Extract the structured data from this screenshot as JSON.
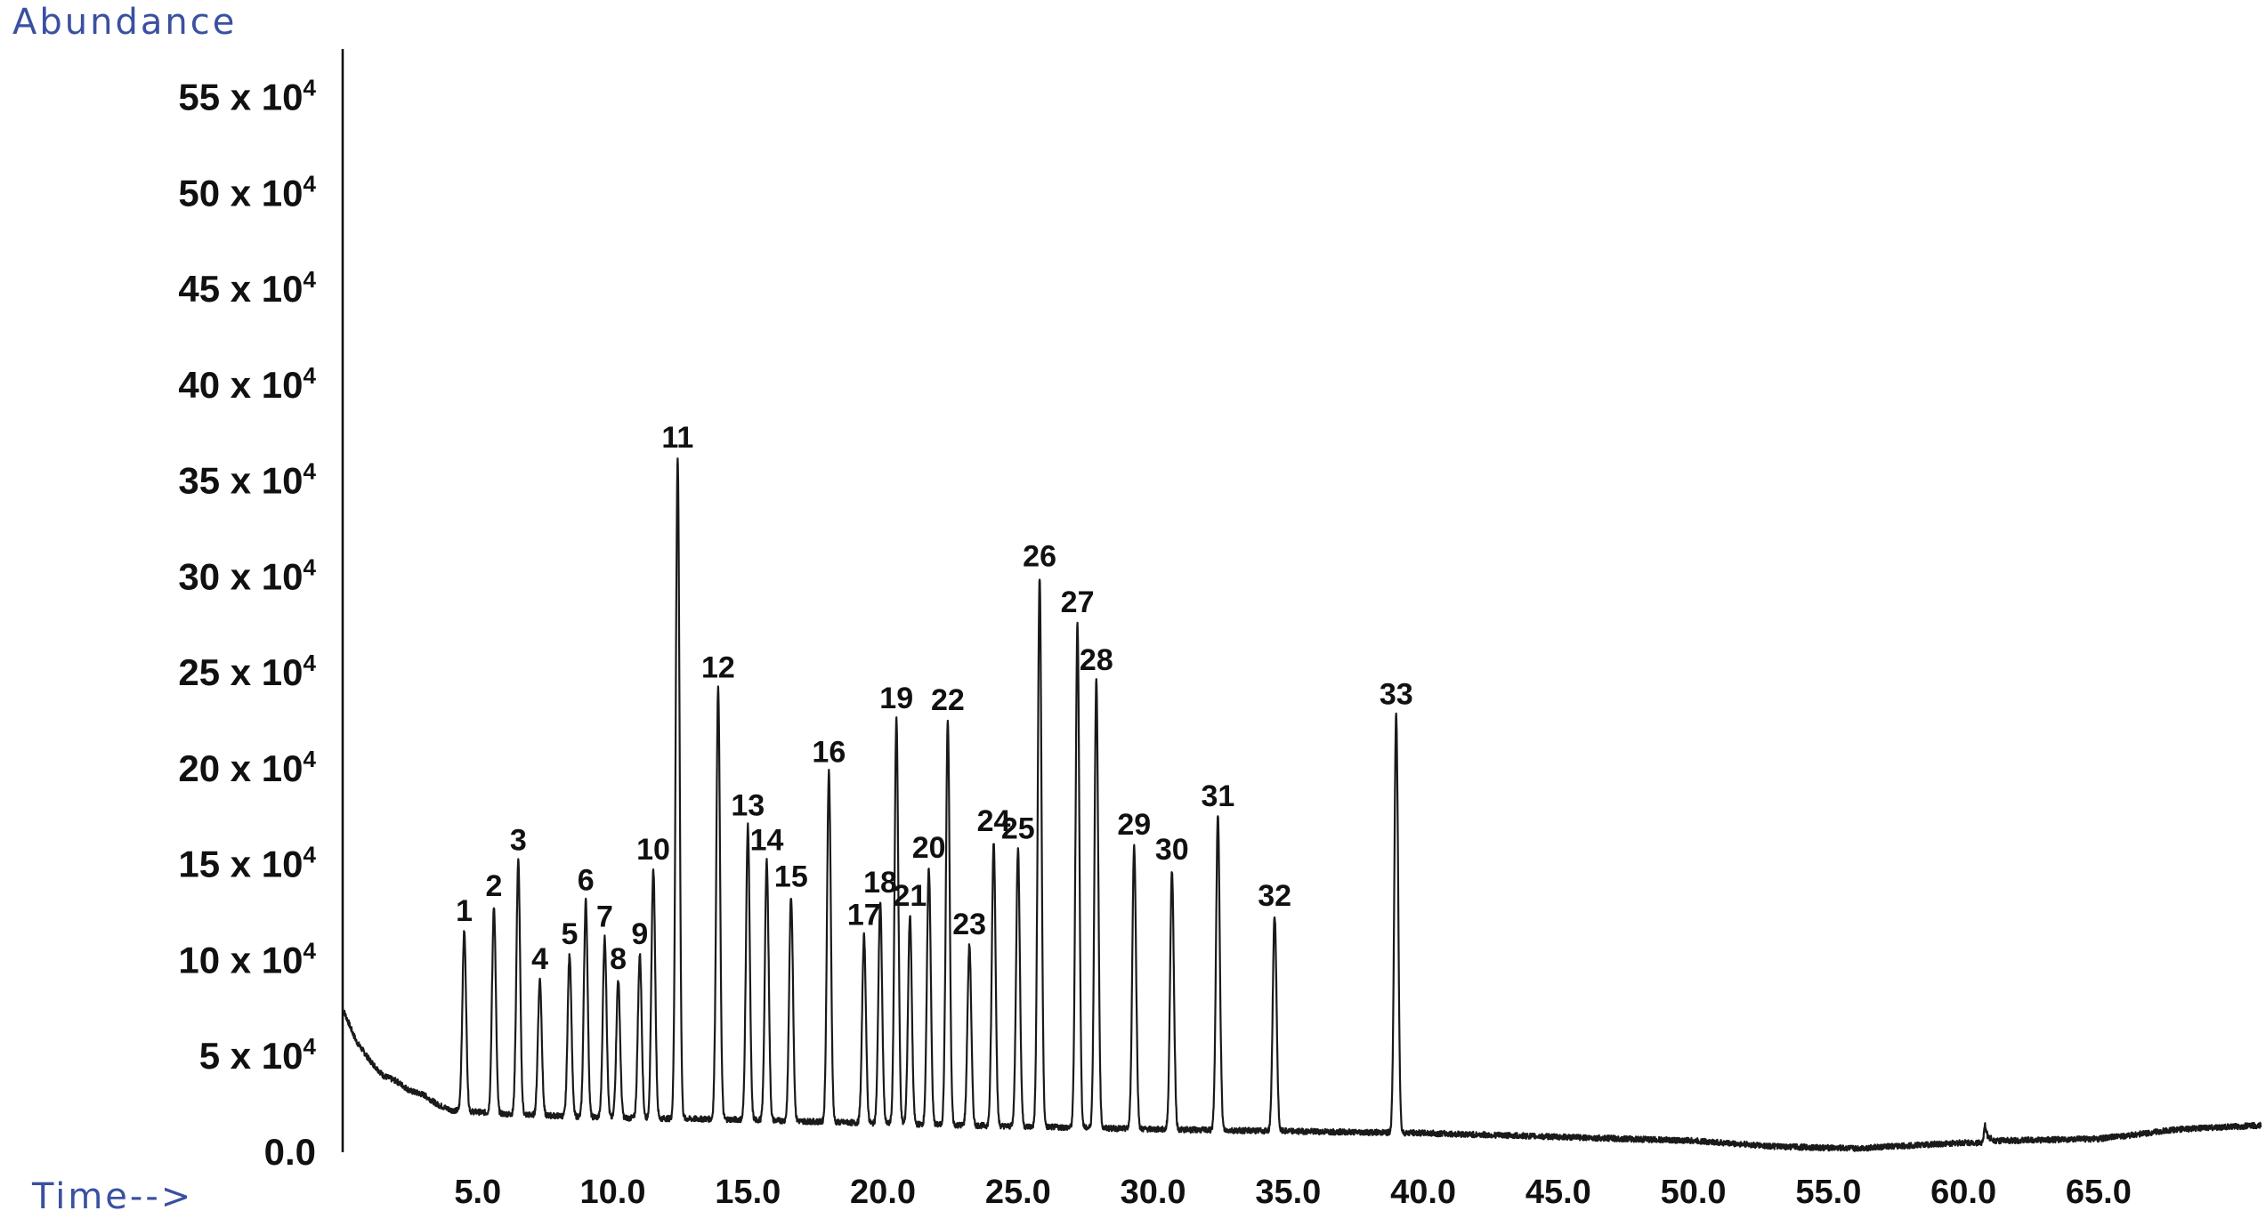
{
  "chart_data": {
    "type": "line",
    "ylabel": "Abundance",
    "xlabel": "Time-->",
    "xlim": [
      0,
      71
    ],
    "ylim": [
      0,
      580000
    ],
    "x_ticks": [
      {
        "value": 5,
        "label": "5.0"
      },
      {
        "value": 10,
        "label": "10.0"
      },
      {
        "value": 15,
        "label": "15.0"
      },
      {
        "value": 20,
        "label": "20.0"
      },
      {
        "value": 25,
        "label": "25.0"
      },
      {
        "value": 30,
        "label": "30.0"
      },
      {
        "value": 35,
        "label": "35.0"
      },
      {
        "value": 40,
        "label": "40.0"
      },
      {
        "value": 45,
        "label": "45.0"
      },
      {
        "value": 50,
        "label": "50.0"
      },
      {
        "value": 55,
        "label": "55.0"
      },
      {
        "value": 60,
        "label": "60.0"
      },
      {
        "value": 65,
        "label": "65.0"
      }
    ],
    "y_ticks": [
      {
        "value": 0,
        "label": "0.0",
        "exp": ""
      },
      {
        "value": 50000,
        "label": "5 x 10",
        "exp": "4"
      },
      {
        "value": 100000,
        "label": "10 x 10",
        "exp": "4"
      },
      {
        "value": 150000,
        "label": "15 x 10",
        "exp": "4"
      },
      {
        "value": 200000,
        "label": "20 x 10",
        "exp": "4"
      },
      {
        "value": 250000,
        "label": "25 x 10",
        "exp": "4"
      },
      {
        "value": 300000,
        "label": "30 x 10",
        "exp": "4"
      },
      {
        "value": 350000,
        "label": "35 x 10",
        "exp": "4"
      },
      {
        "value": 400000,
        "label": "40 x 10",
        "exp": "4"
      },
      {
        "value": 450000,
        "label": "45 x 10",
        "exp": "4"
      },
      {
        "value": 500000,
        "label": "50 x 10",
        "exp": "4"
      },
      {
        "value": 550000,
        "label": "55 x 10",
        "exp": "4"
      }
    ],
    "baseline": [
      [
        0.0,
        75000
      ],
      [
        0.5,
        58000
      ],
      [
        1.0,
        48000
      ],
      [
        1.5,
        40000
      ],
      [
        2.0,
        37000
      ],
      [
        2.5,
        32000
      ],
      [
        3.0,
        30000
      ],
      [
        3.5,
        25000
      ],
      [
        4.0,
        22000
      ],
      [
        6.0,
        20000
      ],
      [
        10.0,
        18000
      ],
      [
        15.0,
        17000
      ],
      [
        20.0,
        15000
      ],
      [
        30.0,
        12000
      ],
      [
        40.0,
        10000
      ],
      [
        45.0,
        8000
      ],
      [
        50.0,
        6000
      ],
      [
        53.0,
        3000
      ],
      [
        56.0,
        2000
      ],
      [
        60.0,
        5000
      ],
      [
        60.7,
        5000
      ],
      [
        60.8,
        14000
      ],
      [
        60.9,
        8000
      ],
      [
        61.2,
        6000
      ],
      [
        65.0,
        7000
      ],
      [
        68.0,
        12000
      ],
      [
        71.0,
        14000
      ]
    ],
    "peaks": [
      {
        "label": "1",
        "rt": 4.5,
        "abundance": 115000
      },
      {
        "label": "2",
        "rt": 5.6,
        "abundance": 128000
      },
      {
        "label": "3",
        "rt": 6.5,
        "abundance": 152000
      },
      {
        "label": "4",
        "rt": 7.3,
        "abundance": 90000
      },
      {
        "label": "5",
        "rt": 8.4,
        "abundance": 103000
      },
      {
        "label": "6",
        "rt": 9.0,
        "abundance": 131000
      },
      {
        "label": "7",
        "rt": 9.7,
        "abundance": 112000
      },
      {
        "label": "8",
        "rt": 10.2,
        "abundance": 90000
      },
      {
        "label": "9",
        "rt": 11.0,
        "abundance": 103000
      },
      {
        "label": "10",
        "rt": 11.5,
        "abundance": 147000
      },
      {
        "label": "11",
        "rt": 12.4,
        "abundance": 362000
      },
      {
        "label": "12",
        "rt": 13.9,
        "abundance": 242000
      },
      {
        "label": "13",
        "rt": 15.0,
        "abundance": 170000
      },
      {
        "label": "14",
        "rt": 15.7,
        "abundance": 152000
      },
      {
        "label": "15",
        "rt": 16.6,
        "abundance": 133000
      },
      {
        "label": "16",
        "rt": 18.0,
        "abundance": 198000
      },
      {
        "label": "17",
        "rt": 19.3,
        "abundance": 113000
      },
      {
        "label": "18",
        "rt": 19.9,
        "abundance": 130000
      },
      {
        "label": "19",
        "rt": 20.5,
        "abundance": 226000
      },
      {
        "label": "20",
        "rt": 21.7,
        "abundance": 148000
      },
      {
        "label": "21",
        "rt": 21.0,
        "abundance": 123000
      },
      {
        "label": "22",
        "rt": 22.4,
        "abundance": 225000
      },
      {
        "label": "23",
        "rt": 23.2,
        "abundance": 108000
      },
      {
        "label": "24",
        "rt": 24.1,
        "abundance": 162000
      },
      {
        "label": "25",
        "rt": 25.0,
        "abundance": 158000
      },
      {
        "label": "26",
        "rt": 25.8,
        "abundance": 300000
      },
      {
        "label": "27",
        "rt": 27.2,
        "abundance": 276000
      },
      {
        "label": "28",
        "rt": 27.9,
        "abundance": 246000
      },
      {
        "label": "29",
        "rt": 29.3,
        "abundance": 160000
      },
      {
        "label": "30",
        "rt": 30.7,
        "abundance": 147000
      },
      {
        "label": "31",
        "rt": 32.4,
        "abundance": 175000
      },
      {
        "label": "32",
        "rt": 34.5,
        "abundance": 123000
      },
      {
        "label": "33",
        "rt": 39.0,
        "abundance": 228000
      }
    ]
  }
}
